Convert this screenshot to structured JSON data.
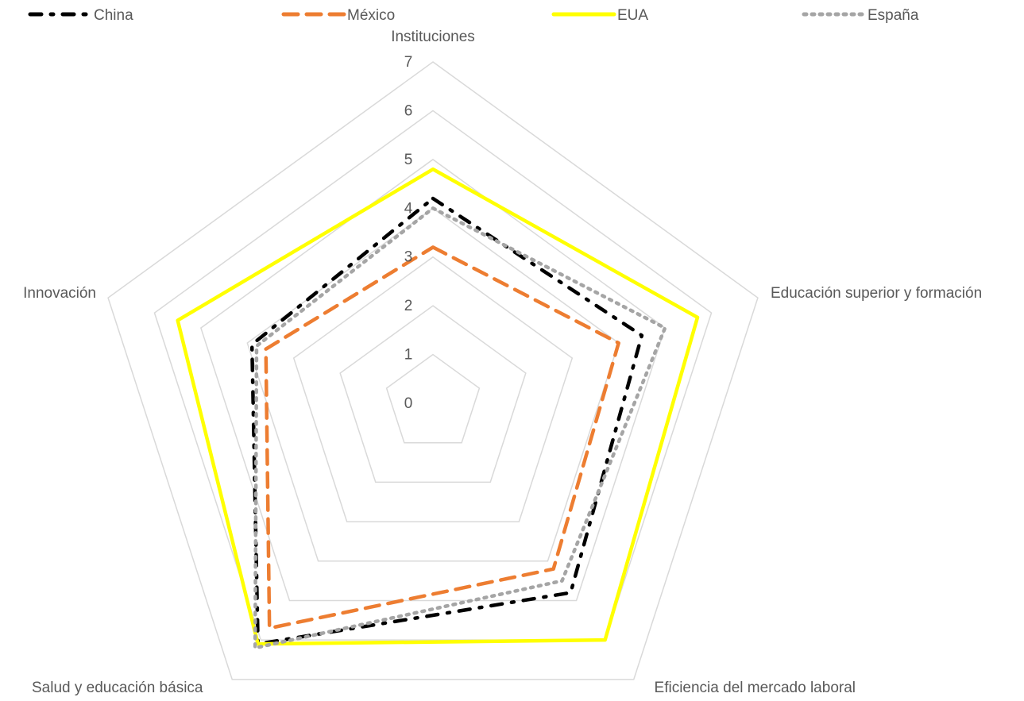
{
  "chart_data": {
    "type": "radar",
    "title": "",
    "axes": [
      "Instituciones",
      "Educación superior y formación",
      "Eficiencia del mercado laboral",
      "Salud y educación básica",
      "Innovación"
    ],
    "rlim": [
      0,
      7
    ],
    "ticks": [
      "0",
      "1",
      "2",
      "3",
      "4",
      "5",
      "6",
      "7"
    ],
    "grid": true,
    "legend_position": "top",
    "series": [
      {
        "name": "China",
        "values": [
          4.2,
          4.5,
          4.8,
          6.1,
          3.9
        ],
        "color": "#000000",
        "style": "dash-dot"
      },
      {
        "name": "México",
        "values": [
          3.2,
          4.0,
          4.2,
          5.7,
          3.6
        ],
        "color": "#ED7D31",
        "style": "dash"
      },
      {
        "name": "EUA",
        "values": [
          4.8,
          5.7,
          6.0,
          6.1,
          5.5
        ],
        "color": "#FFFF00",
        "style": "solid"
      },
      {
        "name": "España",
        "values": [
          4.0,
          5.0,
          4.5,
          6.2,
          3.8
        ],
        "color": "#A5A5A5",
        "style": "dot"
      }
    ]
  }
}
